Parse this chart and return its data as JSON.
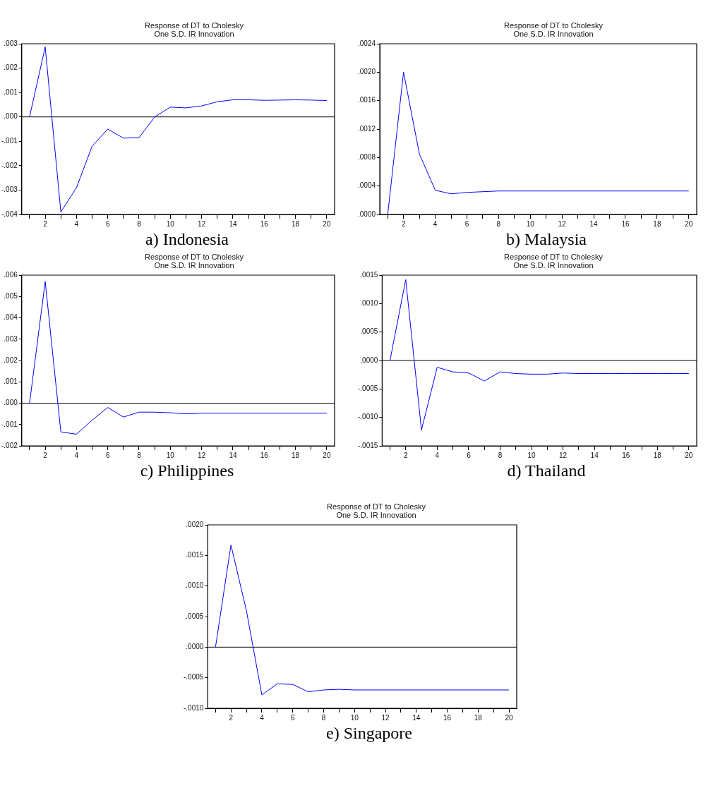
{
  "chart_data": [
    {
      "type": "line",
      "title": "Response of DT to Cholesky",
      "subtitle": "One S.D. IR Innovation",
      "annotations": [
        "a)  Indonesia"
      ],
      "x": [
        1,
        2,
        3,
        4,
        5,
        6,
        7,
        8,
        9,
        10,
        11,
        12,
        13,
        14,
        15,
        16,
        17,
        18,
        19,
        20
      ],
      "values": [
        0,
        0.00287,
        -0.0039,
        -0.0029,
        -0.0012,
        -0.0005,
        -0.00087,
        -0.00085,
        0,
        0.0004,
        0.00037,
        0.00045,
        0.00062,
        0.0007,
        0.0007,
        0.00068,
        0.00069,
        0.0007,
        0.00069,
        0.00067
      ],
      "color": "#0000ff",
      "xlim": [
        0.5,
        20.5
      ],
      "xticks": [
        {
          "value": 1,
          "label": null
        },
        2,
        {
          "value": 3,
          "label": null
        },
        4,
        {
          "value": 5,
          "label": null
        },
        6,
        {
          "value": 7,
          "label": null
        },
        8,
        {
          "value": 9,
          "label": null
        },
        10,
        {
          "value": 11,
          "label": null
        },
        12,
        {
          "value": 13,
          "label": null
        },
        14,
        {
          "value": 15,
          "label": null
        },
        16,
        {
          "value": 17,
          "label": null
        },
        18,
        {
          "value": 19,
          "label": null
        },
        20
      ],
      "ylim": [
        -0.004,
        0.003
      ],
      "yticks": [
        {
          "value": -0.004,
          "label": "-.004"
        },
        {
          "value": -0.003,
          "label": "-.003"
        },
        {
          "value": -0.002,
          "label": "-.002"
        },
        {
          "value": -0.001,
          "label": "-.001"
        },
        {
          "value": 0,
          "label": ".000"
        },
        {
          "value": 0.001,
          "label": ".001"
        },
        {
          "value": 0.002,
          "label": ".002"
        },
        {
          "value": 0.003,
          "label": ".003"
        }
      ],
      "ref_lines": [
        {
          "axis": "y",
          "value": 0,
          "color": "#000000"
        }
      ],
      "marker": "none"
    },
    {
      "type": "line",
      "title": "Response of DT to Cholesky",
      "subtitle": "One S.D. IR Innovation",
      "annotations": [
        "b)  Malaysia"
      ],
      "x": [
        1,
        2,
        3,
        4,
        5,
        6,
        7,
        8,
        9,
        10,
        11,
        12,
        13,
        14,
        15,
        16,
        17,
        18,
        19,
        20
      ],
      "values": [
        0,
        0.002,
        0.00085,
        0.00034,
        0.00029,
        0.00031,
        0.00032,
        0.00033,
        0.00033,
        0.00033,
        0.00033,
        0.00033,
        0.00033,
        0.00033,
        0.00033,
        0.00033,
        0.00033,
        0.00033,
        0.00033,
        0.00033
      ],
      "color": "#0000ff",
      "xlim": [
        0.5,
        20.5
      ],
      "xticks": [
        {
          "value": 1,
          "label": null
        },
        2,
        {
          "value": 3,
          "label": null
        },
        4,
        {
          "value": 5,
          "label": null
        },
        6,
        {
          "value": 7,
          "label": null
        },
        8,
        {
          "value": 9,
          "label": null
        },
        10,
        {
          "value": 11,
          "label": null
        },
        12,
        {
          "value": 13,
          "label": null
        },
        14,
        {
          "value": 15,
          "label": null
        },
        16,
        {
          "value": 17,
          "label": null
        },
        18,
        {
          "value": 19,
          "label": null
        },
        20
      ],
      "ylim": [
        0,
        0.0024
      ],
      "yticks": [
        {
          "value": 0,
          "label": ".0000"
        },
        {
          "value": 0.0004,
          "label": ".0004"
        },
        {
          "value": 0.0008,
          "label": ".0008"
        },
        {
          "value": 0.0012,
          "label": ".0012"
        },
        {
          "value": 0.0016,
          "label": ".0016"
        },
        {
          "value": 0.002,
          "label": ".0020"
        },
        {
          "value": 0.0024,
          "label": ".0024"
        }
      ],
      "marker": "none"
    },
    {
      "type": "line",
      "title": "Response of DT to Cholesky",
      "subtitle": "One S.D. IR Innovation",
      "annotations": [
        "c)  Philippines"
      ],
      "x": [
        1,
        2,
        3,
        4,
        5,
        6,
        7,
        8,
        9,
        10,
        11,
        12,
        13,
        14,
        15,
        16,
        17,
        18,
        19,
        20
      ],
      "values": [
        0,
        0.0057,
        -0.00135,
        -0.00145,
        -0.0008,
        -0.0002,
        -0.00065,
        -0.00042,
        -0.00042,
        -0.00045,
        -0.0005,
        -0.00047,
        -0.00047,
        -0.00047,
        -0.00047,
        -0.00047,
        -0.00047,
        -0.00047,
        -0.00047,
        -0.00047
      ],
      "color": "#0000ff",
      "xlim": [
        0.5,
        20.5
      ],
      "xticks": [
        {
          "value": 1,
          "label": null
        },
        2,
        {
          "value": 3,
          "label": null
        },
        4,
        {
          "value": 5,
          "label": null
        },
        6,
        {
          "value": 7,
          "label": null
        },
        8,
        {
          "value": 9,
          "label": null
        },
        10,
        {
          "value": 11,
          "label": null
        },
        12,
        {
          "value": 13,
          "label": null
        },
        14,
        {
          "value": 15,
          "label": null
        },
        16,
        {
          "value": 17,
          "label": null
        },
        18,
        {
          "value": 19,
          "label": null
        },
        20
      ],
      "ylim": [
        -0.002,
        0.006
      ],
      "yticks": [
        {
          "value": -0.002,
          "label": "-.002"
        },
        {
          "value": -0.001,
          "label": "-.001"
        },
        {
          "value": 0,
          "label": ".000"
        },
        {
          "value": 0.001,
          "label": ".001"
        },
        {
          "value": 0.002,
          "label": ".002"
        },
        {
          "value": 0.003,
          "label": ".003"
        },
        {
          "value": 0.004,
          "label": ".004"
        },
        {
          "value": 0.005,
          "label": ".005"
        },
        {
          "value": 0.006,
          "label": ".006"
        }
      ],
      "ref_lines": [
        {
          "axis": "y",
          "value": 0,
          "color": "#000000"
        }
      ],
      "marker": "none"
    },
    {
      "type": "line",
      "title": "Response of DT to Cholesky",
      "subtitle": "One S.D. IR Innovation",
      "annotations": [
        "d)  Thailand"
      ],
      "x": [
        1,
        2,
        3,
        4,
        5,
        6,
        7,
        8,
        9,
        10,
        11,
        12,
        13,
        14,
        15,
        16,
        17,
        18,
        19,
        20
      ],
      "values": [
        0,
        0.00142,
        -0.00122,
        -0.00012,
        -0.0002,
        -0.00022,
        -0.00036,
        -0.0002,
        -0.00023,
        -0.00024,
        -0.00024,
        -0.00022,
        -0.00023,
        -0.00023,
        -0.00023,
        -0.00023,
        -0.00023,
        -0.00023,
        -0.00023,
        -0.00023
      ],
      "color": "#0000ff",
      "xlim": [
        0.5,
        20.5
      ],
      "xticks": [
        {
          "value": 1,
          "label": null
        },
        2,
        {
          "value": 3,
          "label": null
        },
        4,
        {
          "value": 5,
          "label": null
        },
        6,
        {
          "value": 7,
          "label": null
        },
        8,
        {
          "value": 9,
          "label": null
        },
        10,
        {
          "value": 11,
          "label": null
        },
        12,
        {
          "value": 13,
          "label": null
        },
        14,
        {
          "value": 15,
          "label": null
        },
        16,
        {
          "value": 17,
          "label": null
        },
        18,
        {
          "value": 19,
          "label": null
        },
        20
      ],
      "ylim": [
        -0.0015,
        0.0015
      ],
      "yticks": [
        {
          "value": -0.0015,
          "label": "-.0015"
        },
        {
          "value": -0.001,
          "label": "-.0010"
        },
        {
          "value": -0.0005,
          "label": "-.0005"
        },
        {
          "value": 0,
          "label": ".0000"
        },
        {
          "value": 0.0005,
          "label": ".0005"
        },
        {
          "value": 0.001,
          "label": ".0010"
        },
        {
          "value": 0.0015,
          "label": ".0015"
        }
      ],
      "ref_lines": [
        {
          "axis": "y",
          "value": 0,
          "color": "#000000"
        }
      ],
      "marker": "none"
    },
    {
      "type": "line",
      "title": "Response of DT to Cholesky",
      "subtitle": "One S.D. IR Innovation",
      "annotations": [
        "e)  Singapore"
      ],
      "x": [
        1,
        2,
        3,
        4,
        5,
        6,
        7,
        8,
        9,
        10,
        11,
        12,
        13,
        14,
        15,
        16,
        17,
        18,
        19,
        20
      ],
      "values": [
        0,
        0.00167,
        0.0006,
        -0.00078,
        -0.0006,
        -0.00061,
        -0.00073,
        -0.0007,
        -0.00069,
        -0.0007,
        -0.0007,
        -0.0007,
        -0.0007,
        -0.0007,
        -0.0007,
        -0.0007,
        -0.0007,
        -0.0007,
        -0.0007,
        -0.0007
      ],
      "color": "#0000ff",
      "xlim": [
        0.5,
        20.5
      ],
      "xticks": [
        {
          "value": 1,
          "label": null
        },
        2,
        {
          "value": 3,
          "label": null
        },
        4,
        {
          "value": 5,
          "label": null
        },
        6,
        {
          "value": 7,
          "label": null
        },
        8,
        {
          "value": 9,
          "label": null
        },
        10,
        {
          "value": 11,
          "label": null
        },
        12,
        {
          "value": 13,
          "label": null
        },
        14,
        {
          "value": 15,
          "label": null
        },
        16,
        {
          "value": 17,
          "label": null
        },
        18,
        {
          "value": 19,
          "label": null
        },
        20
      ],
      "ylim": [
        -0.001,
        0.002
      ],
      "yticks": [
        {
          "value": -0.001,
          "label": "-.0010"
        },
        {
          "value": -0.0005,
          "label": "-.0005"
        },
        {
          "value": 0,
          "label": ".0000"
        },
        {
          "value": 0.0005,
          "label": ".0005"
        },
        {
          "value": 0.001,
          "label": ".0010"
        },
        {
          "value": 0.0015,
          "label": ".0015"
        },
        {
          "value": 0.002,
          "label": ".0020"
        }
      ],
      "ref_lines": [
        {
          "axis": "y",
          "value": 0,
          "color": "#000000"
        }
      ],
      "marker": "none"
    }
  ]
}
